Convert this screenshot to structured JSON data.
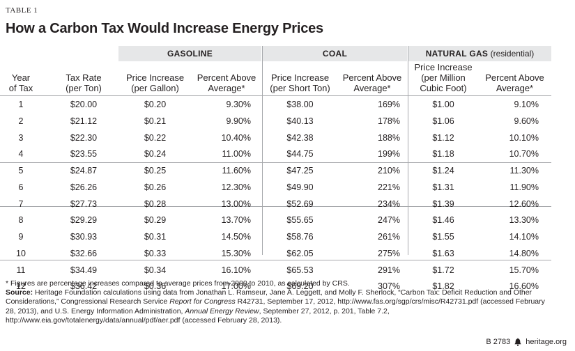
{
  "table_label": "TABLE 1",
  "title": "How a Carbon Tax Would Increase Energy Prices",
  "groups": {
    "gasoline": "GASOLINE",
    "coal": "COAL",
    "natural_gas": "NATURAL GAS",
    "natural_gas_sub": "(residential)"
  },
  "columns": {
    "year": [
      "Year",
      "of Tax"
    ],
    "tax_rate": [
      "Tax Rate",
      "(per Ton)"
    ],
    "gas_price": [
      "Price Increase",
      "(per Gallon)"
    ],
    "gas_pct": [
      "Percent Above",
      "Average*"
    ],
    "coal_price": [
      "Price Increase",
      "(per Short Ton)"
    ],
    "coal_pct": [
      "Percent Above",
      "Average*"
    ],
    "ng_price": [
      "Price Increase",
      "(per Million",
      "Cubic Foot)"
    ],
    "ng_pct": [
      "Percent Above",
      "Average*"
    ]
  },
  "rows": [
    [
      "1",
      "$20.00",
      "$0.20",
      "9.30%",
      "$38.00",
      "169%",
      "$1.00",
      "9.10%"
    ],
    [
      "2",
      "$21.12",
      "$0.21",
      "9.90%",
      "$40.13",
      "178%",
      "$1.06",
      "9.60%"
    ],
    [
      "3",
      "$22.30",
      "$0.22",
      "10.40%",
      "$42.38",
      "188%",
      "$1.12",
      "10.10%"
    ],
    [
      "4",
      "$23.55",
      "$0.24",
      "11.00%",
      "$44.75",
      "199%",
      "$1.18",
      "10.70%"
    ],
    [
      "5",
      "$24.87",
      "$0.25",
      "11.60%",
      "$47.25",
      "210%",
      "$1.24",
      "11.30%"
    ],
    [
      "6",
      "$26.26",
      "$0.26",
      "12.30%",
      "$49.90",
      "221%",
      "$1.31",
      "11.90%"
    ],
    [
      "7",
      "$27.73",
      "$0.28",
      "13.00%",
      "$52.69",
      "234%",
      "$1.39",
      "12.60%"
    ],
    [
      "8",
      "$29.29",
      "$0.29",
      "13.70%",
      "$55.65",
      "247%",
      "$1.46",
      "13.30%"
    ],
    [
      "9",
      "$30.93",
      "$0.31",
      "14.50%",
      "$58.76",
      "261%",
      "$1.55",
      "14.10%"
    ],
    [
      "10",
      "$32.66",
      "$0.33",
      "15.30%",
      "$62.05",
      "275%",
      "$1.63",
      "14.80%"
    ],
    [
      "11",
      "$34.49",
      "$0.34",
      "16.10%",
      "$65.53",
      "291%",
      "$1.72",
      "15.70%"
    ],
    [
      "12",
      "$36.42",
      "$0.36",
      "17.00%",
      "$69.20",
      "307%",
      "$1.82",
      "16.60%"
    ]
  ],
  "footnote": "* Figures are percentage increases compared to average prices from 2000 to 2010, as calculated by CRS.",
  "source_label": "Source:",
  "source_text_1": " Heritage Foundation calculations using data from Jonathan L. Ramseur, Jane A. Leggett, and Molly F. Sherlock, “Carbon Tax: Deficit Reduction and Other Considerations,” Congressional Research Service ",
  "source_italic_1": "Report for Congress",
  "source_text_2": " R42731, September 17, 2012, http://www.fas.org/sgp/crs/misc/R42731.pdf (accessed February 28, 2013), and U.S. Energy Information Administration, ",
  "source_italic_2": "Annual Energy Review",
  "source_text_3": ", September 27, 2012, p. 201, Table 7.2, http://www.eia.gov/totalenergy/data/annual/pdf/aer.pdf (accessed February 28, 2013).",
  "credit_code": "B 2783",
  "credit_site": "heritage.org"
}
